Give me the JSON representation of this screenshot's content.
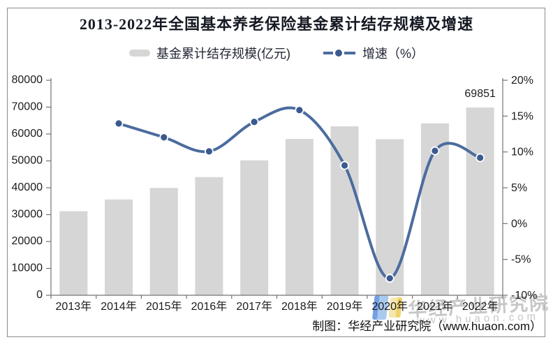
{
  "title": "2013-2022年全国基本养老保险基金累计结存规模及增速",
  "legend": {
    "bar_label": "基金累计结存规模(亿元)",
    "line_label": "增速（%）"
  },
  "credit": "制图：华经产业研究院（www.huaon.com）",
  "watermark": {
    "brand": "华经产业研究院",
    "url": "www.huaon.com",
    "logo": "huaon-logo"
  },
  "colors": {
    "bar": "#d6d6d6",
    "line": "#4b6c9e",
    "marker": "#3a5a90",
    "marker_ring": "#ffffff",
    "axis": "#737373",
    "tick_text": "#1c1c1c",
    "annotation_text": "#111111",
    "watermark": "#c7c7c7",
    "logo_blue": "#a9c9ef",
    "logo_blue_dark": "#74a0e4",
    "logo_yellow": "#f5e7ae",
    "logo_yellow_dark": "#eed46b"
  },
  "chart_data": {
    "type": "bar+line combo",
    "title": "2013-2022年全国基本养老保险基金累计结存规模及增速",
    "categories": [
      "2013年",
      "2014年",
      "2015年",
      "2016年",
      "2017年",
      "2018年",
      "2019年",
      "2020年",
      "2021年",
      "2022年"
    ],
    "series": [
      {
        "name": "基金累计结存规模(亿元)",
        "type": "bar",
        "axis": "left",
        "values": [
          31275,
          35645,
          39937,
          43965,
          50202,
          58152,
          62873,
          58075,
          63970,
          69851
        ]
      },
      {
        "name": "增速（%）",
        "type": "line",
        "axis": "right",
        "smooth": true,
        "values": [
          null,
          13.97,
          12.04,
          10.08,
          14.19,
          15.84,
          8.12,
          -7.63,
          10.15,
          9.19
        ]
      }
    ],
    "left_axis": {
      "min": 0,
      "max": 80000,
      "step": 10000,
      "labels": [
        "0",
        "10000",
        "20000",
        "30000",
        "40000",
        "50000",
        "60000",
        "70000",
        "80000"
      ]
    },
    "right_axis": {
      "min": -10,
      "max": 20,
      "step": 5,
      "labels": [
        "-10%",
        "-5%",
        "0%",
        "5%",
        "10%",
        "15%",
        "20%"
      ]
    },
    "annotations": [
      {
        "text": "69851",
        "category": "2022年"
      }
    ],
    "grid": false,
    "legend_position": "top"
  }
}
